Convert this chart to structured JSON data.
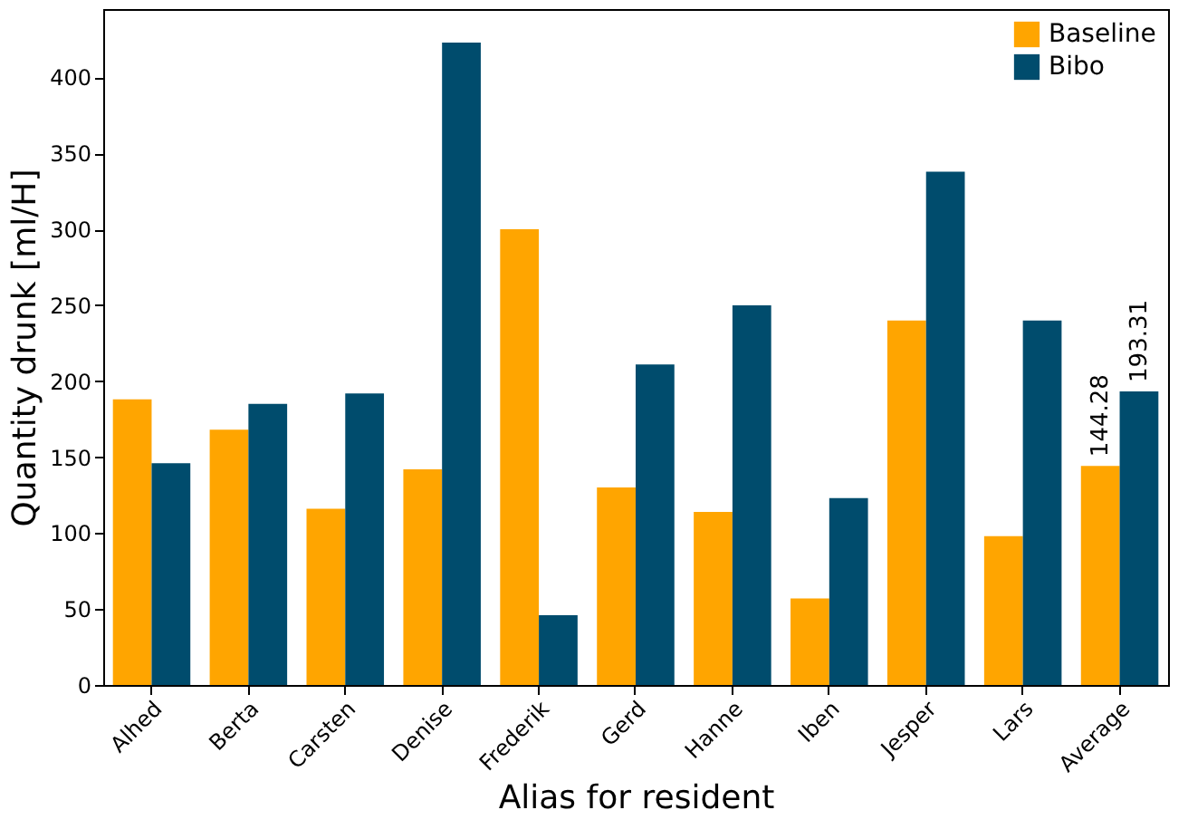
{
  "chart_data": {
    "type": "bar",
    "xlabel": "Alias for resident",
    "ylabel": "Quantity drunk [ml/H]",
    "categories": [
      "Alhed",
      "Berta",
      "Carsten",
      "Denise",
      "Frederik",
      "Gerd",
      "Hanne",
      "Iben",
      "Jesper",
      "Lars",
      "Average"
    ],
    "series": [
      {
        "name": "Baseline",
        "color": "#ffa500",
        "values": [
          188,
          168,
          116,
          142,
          300,
          130,
          114,
          57,
          240,
          98,
          144.28
        ],
        "value_labels": [
          null,
          null,
          null,
          null,
          null,
          null,
          null,
          null,
          null,
          null,
          "144.28"
        ]
      },
      {
        "name": "Bibo",
        "color": "#004c6d",
        "values": [
          146,
          185,
          192,
          423,
          46,
          211,
          250,
          123,
          338,
          240,
          193.31
        ],
        "value_labels": [
          null,
          null,
          null,
          null,
          null,
          null,
          null,
          null,
          null,
          null,
          "193.31"
        ]
      }
    ],
    "ylim": [
      0,
      445
    ],
    "yticks": [
      0,
      50,
      100,
      150,
      200,
      250,
      300,
      350,
      400
    ],
    "grid": false,
    "legend": "top right"
  }
}
